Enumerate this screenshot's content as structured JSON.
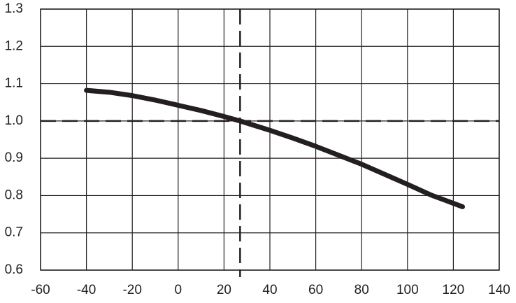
{
  "chart_data": {
    "type": "line",
    "x": [
      -40,
      -30,
      -20,
      -10,
      0,
      10,
      20,
      27,
      40,
      50,
      60,
      70,
      80,
      90,
      100,
      110,
      124
    ],
    "values": [
      1.082,
      1.077,
      1.068,
      1.056,
      1.042,
      1.028,
      1.012,
      1.0,
      0.975,
      0.954,
      0.932,
      0.908,
      0.884,
      0.857,
      0.83,
      0.802,
      0.77
    ],
    "color": "#231f20",
    "xlim": [
      -60,
      140
    ],
    "xticks": [
      -60,
      -40,
      -20,
      0,
      20,
      40,
      60,
      80,
      100,
      120,
      140
    ],
    "ylim": [
      0.6,
      1.3
    ],
    "yticks": [
      0.6,
      0.7,
      0.8,
      0.9,
      {
        "value": 1,
        "label": "1.0"
      },
      1.1,
      1.2,
      1.3
    ],
    "grid": true,
    "reference_lines": {
      "x": 27,
      "y": 1
    }
  }
}
